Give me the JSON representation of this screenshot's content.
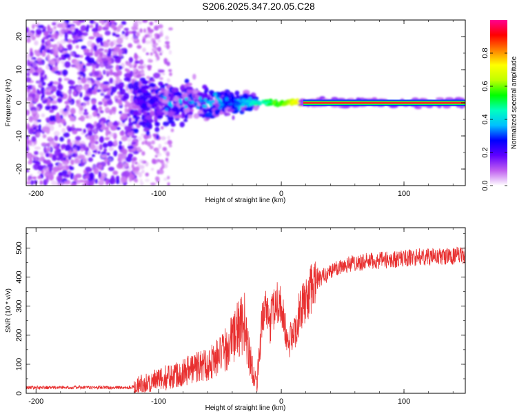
{
  "title": "S206.2025.347.20.05.C28",
  "chart_data": [
    {
      "type": "heatmap",
      "name": "spectrogram",
      "xlabel": "Height of straight line (km)",
      "ylabel": "Frequency (Hz)",
      "xlim": [
        -208,
        150
      ],
      "ylim": [
        -25,
        25
      ],
      "x_ticks": [
        -200,
        -100,
        0,
        100
      ],
      "y_ticks": [
        -20,
        -10,
        0,
        10,
        20
      ],
      "colorbar": {
        "label": "Normalized spectral amplitude",
        "range": [
          0,
          1
        ],
        "ticks": [
          0.0,
          0.2,
          0.4,
          0.6,
          0.8
        ],
        "colors": [
          "#ffffff",
          "#c060f0",
          "#6000ff",
          "#0000ff",
          "#00c0ff",
          "#00ffc0",
          "#00ff00",
          "#c0ff00",
          "#ffff00",
          "#ff8000",
          "#ff0000",
          "#ff0090"
        ]
      },
      "features": [
        {
          "region": "x -208 to -120 km",
          "description": "diffuse low amplitude noise across all frequencies",
          "amplitude": 0.05
        },
        {
          "region": "x -120 to -20 km",
          "description": "scattered energy narrowing toward 0 Hz",
          "amplitude": 0.2
        },
        {
          "region": "x -20 to 20 km",
          "description": "emerging tone near 0 Hz",
          "amplitude": 0.6
        },
        {
          "region": "x 20 to 150 km",
          "description": "steady tone at 0 Hz",
          "amplitude": 1.0
        }
      ]
    },
    {
      "type": "line",
      "name": "snr",
      "xlabel": "Height of straight line (km)",
      "ylabel": "SNR (10 * v/v)",
      "xlim": [
        -208,
        150
      ],
      "ylim": [
        0,
        570
      ],
      "x_ticks": [
        -200,
        -100,
        0,
        100
      ],
      "y_ticks": [
        0,
        100,
        200,
        300,
        400,
        500
      ],
      "line_color": "#e83030",
      "series": [
        {
          "name": "SNR",
          "x": [
            -208,
            -180,
            -150,
            -130,
            -120,
            -110,
            -100,
            -90,
            -80,
            -70,
            -60,
            -50,
            -45,
            -40,
            -35,
            -30,
            -25,
            -22,
            -20,
            -18,
            -15,
            -12,
            -10,
            -8,
            -5,
            -2,
            0,
            5,
            10,
            15,
            20,
            25,
            30,
            40,
            50,
            60,
            75,
            90,
            100,
            115,
            130,
            150
          ],
          "values": [
            20,
            20,
            20,
            20,
            22,
            35,
            45,
            60,
            75,
            90,
            100,
            130,
            150,
            190,
            220,
            240,
            110,
            60,
            30,
            140,
            260,
            300,
            200,
            280,
            310,
            320,
            300,
            170,
            200,
            280,
            320,
            360,
            390,
            420,
            440,
            450,
            455,
            460,
            465,
            470,
            470,
            475
          ]
        }
      ]
    }
  ]
}
